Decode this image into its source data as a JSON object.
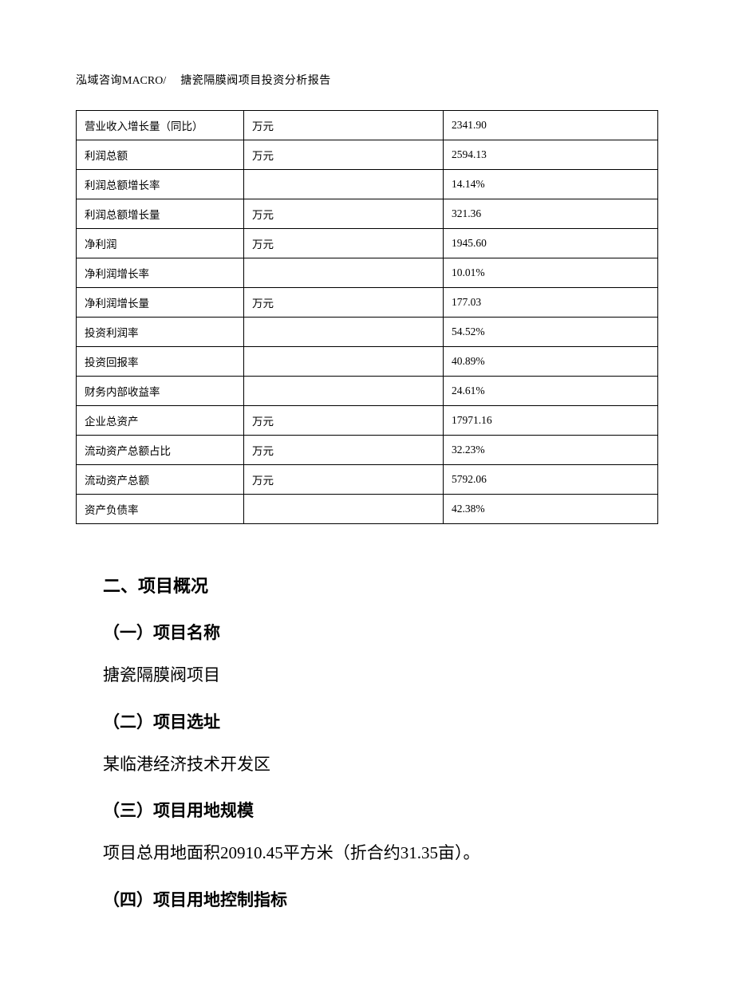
{
  "header": {
    "company": "泓域咨询",
    "macro": "MACRO/",
    "title": "搪瓷隔膜阀项目投资分析报告"
  },
  "table": {
    "columns": {
      "name_width": 210,
      "unit_width": 250
    },
    "rows": [
      {
        "name": "营业收入增长量（同比）",
        "unit": "万元",
        "value": "2341.90"
      },
      {
        "name": "利润总额",
        "unit": "万元",
        "value": "2594.13"
      },
      {
        "name": "利润总额增长率",
        "unit": "",
        "value": "14.14%"
      },
      {
        "name": "利润总额增长量",
        "unit": "万元",
        "value": "321.36"
      },
      {
        "name": "净利润",
        "unit": "万元",
        "value": "1945.60"
      },
      {
        "name": "净利润增长率",
        "unit": "",
        "value": "10.01%"
      },
      {
        "name": "净利润增长量",
        "unit": "万元",
        "value": "177.03"
      },
      {
        "name": "投资利润率",
        "unit": "",
        "value": "54.52%"
      },
      {
        "name": "投资回报率",
        "unit": "",
        "value": "40.89%"
      },
      {
        "name": "财务内部收益率",
        "unit": "",
        "value": "24.61%"
      },
      {
        "name": "企业总资产",
        "unit": "万元",
        "value": "17971.16"
      },
      {
        "name": "流动资产总额占比",
        "unit": "万元",
        "value": "32.23%"
      },
      {
        "name": "流动资产总额",
        "unit": "万元",
        "value": "5792.06"
      },
      {
        "name": "资产负债率",
        "unit": "",
        "value": "42.38%"
      }
    ]
  },
  "sections": {
    "main_heading": "二、项目概况",
    "items": [
      {
        "heading": "（一）项目名称",
        "text": "搪瓷隔膜阀项目"
      },
      {
        "heading": "（二）项目选址",
        "text": "某临港经济技术开发区"
      },
      {
        "heading": "（三）项目用地规模",
        "text": "项目总用地面积20910.45平方米（折合约31.35亩）。"
      },
      {
        "heading": "（四）项目用地控制指标",
        "text": ""
      }
    ]
  }
}
